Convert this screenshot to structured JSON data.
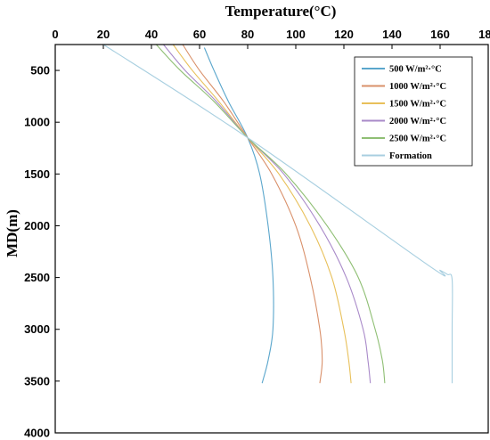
{
  "chart_data": {
    "type": "line",
    "title": "Temperature(°C)",
    "xlabel": "Temperature(°C)",
    "ylabel": "MD(m)",
    "xlim": [
      0,
      180
    ],
    "ylim": [
      4000,
      250
    ],
    "y_inverted": true,
    "x_axis_position": "top",
    "x_ticks": [
      0,
      20,
      40,
      60,
      80,
      100,
      120,
      140,
      160,
      180
    ],
    "y_ticks": [
      500,
      1000,
      1500,
      2000,
      2500,
      3000,
      3500,
      4000
    ],
    "legend_position": "top-right",
    "grid": false,
    "series": [
      {
        "name": "500 W/m²·°C",
        "color": "#5aa6cc",
        "points": [
          [
            62,
            280
          ],
          [
            66,
            500
          ],
          [
            72,
            800
          ],
          [
            80,
            1150
          ],
          [
            85,
            1500
          ],
          [
            88.5,
            2000
          ],
          [
            90.5,
            2500
          ],
          [
            90.5,
            3000
          ],
          [
            88.5,
            3300
          ],
          [
            86,
            3520
          ]
        ]
      },
      {
        "name": "1000 W/m²·°C",
        "color": "#d9906a",
        "points": [
          [
            53,
            250
          ],
          [
            60,
            500
          ],
          [
            70,
            800
          ],
          [
            80,
            1150
          ],
          [
            90,
            1500
          ],
          [
            100,
            2000
          ],
          [
            106,
            2500
          ],
          [
            110,
            3000
          ],
          [
            111,
            3300
          ],
          [
            110,
            3520
          ]
        ]
      },
      {
        "name": "1500 W/m²·°C",
        "color": "#e8c05a",
        "points": [
          [
            49,
            250
          ],
          [
            57,
            500
          ],
          [
            68,
            800
          ],
          [
            80,
            1150
          ],
          [
            93,
            1500
          ],
          [
            106,
            2000
          ],
          [
            115,
            2500
          ],
          [
            120,
            3000
          ],
          [
            122,
            3300
          ],
          [
            123,
            3520
          ]
        ]
      },
      {
        "name": "2000 W/m²·°C",
        "color": "#a98ac9",
        "points": [
          [
            45,
            250
          ],
          [
            54,
            500
          ],
          [
            67,
            800
          ],
          [
            80,
            1150
          ],
          [
            95,
            1500
          ],
          [
            110,
            2000
          ],
          [
            121,
            2500
          ],
          [
            128,
            3000
          ],
          [
            130,
            3300
          ],
          [
            131,
            3520
          ]
        ]
      },
      {
        "name": "2500 W/m²·°C",
        "color": "#8fbf74",
        "points": [
          [
            42,
            250
          ],
          [
            52,
            500
          ],
          [
            66,
            800
          ],
          [
            80,
            1150
          ],
          [
            96,
            1500
          ],
          [
            113,
            2000
          ],
          [
            126,
            2500
          ],
          [
            133,
            3000
          ],
          [
            136,
            3300
          ],
          [
            137,
            3520
          ]
        ]
      },
      {
        "name": "Formation",
        "color": "#a8cfe0",
        "points": [
          [
            20,
            250
          ],
          [
            80,
            1150
          ],
          [
            155,
            2380
          ],
          [
            160,
            2430
          ],
          [
            163,
            2470
          ],
          [
            165,
            2520
          ],
          [
            165,
            3000
          ],
          [
            165,
            3520
          ]
        ]
      }
    ]
  }
}
